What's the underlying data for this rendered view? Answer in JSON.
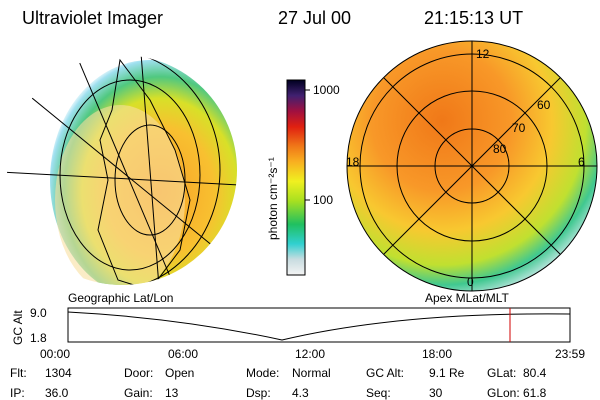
{
  "header": {
    "title": "Ultraviolet Imager",
    "date": "27 Jul 00",
    "time": "21:15:13 UT"
  },
  "colorbar": {
    "label": "photon cm⁻²s⁻¹",
    "ticks": [
      "1000",
      "100"
    ]
  },
  "left_map": {
    "caption": "Geographic Lat/Lon"
  },
  "right_map": {
    "caption": "Apex MLat/MLT",
    "mlt_labels": [
      "12",
      "18",
      "6",
      "0"
    ],
    "lat_labels": [
      "60",
      "70",
      "80"
    ]
  },
  "orbit_plot": {
    "y_label": "GC Alt",
    "yticks": [
      "9.0",
      "1.8"
    ],
    "xticks": [
      "00:00",
      "06:00",
      "12:00",
      "18:00",
      "23:59"
    ]
  },
  "status": {
    "rows": [
      [
        [
          "Flt:",
          "1304"
        ],
        [
          "Door:",
          "Open"
        ],
        [
          "Mode:",
          "Normal"
        ],
        [
          "GC Alt:",
          "9.1 Re"
        ],
        [
          "GLat:",
          "80.4"
        ]
      ],
      [
        [
          "IP:",
          "36.0"
        ],
        [
          "Gain:",
          "13"
        ],
        [
          "Dsp:",
          "4.3"
        ],
        [
          "Seq:",
          "30"
        ],
        [
          "GLon:",
          "61.8"
        ]
      ]
    ]
  }
}
